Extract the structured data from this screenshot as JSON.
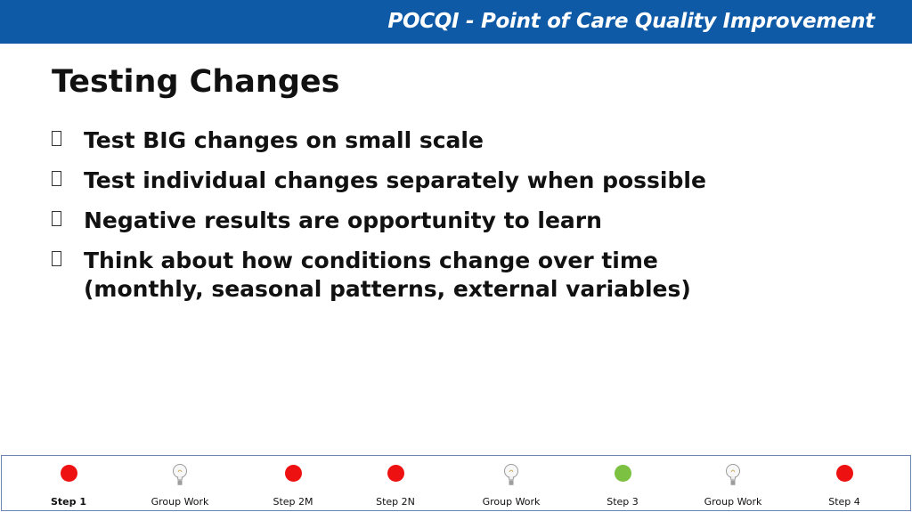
{
  "header": {
    "title": "POCQI - Point of Care Quality Improvement"
  },
  "slide": {
    "title": "Testing Changes",
    "bullets": [
      {
        "text": "Test BIG changes on small scale"
      },
      {
        "text": "Test individual changes separately when possible"
      },
      {
        "text": "Negative results are opportunity to learn"
      },
      {
        "text": "Think about how conditions change over time",
        "sub": "(monthly, seasonal patterns, external variables)"
      }
    ]
  },
  "footer_nav": {
    "items": [
      {
        "label": "Step 1",
        "icon": "red-dot",
        "color": "#ee1111",
        "active": true
      },
      {
        "label": "Group Work",
        "icon": "lightbulb-icon"
      },
      {
        "label": "Step 2M",
        "icon": "red-dot",
        "color": "#ee1111"
      },
      {
        "label": "Step 2N",
        "icon": "red-dot",
        "color": "#ee1111"
      },
      {
        "label": "Group Work",
        "icon": "lightbulb-icon"
      },
      {
        "label": "Step 3",
        "icon": "green-dot",
        "color": "#7cc142"
      },
      {
        "label": "Group Work",
        "icon": "lightbulb-icon"
      },
      {
        "label": "Step 4",
        "icon": "red-dot",
        "color": "#ee1111"
      }
    ]
  },
  "colors": {
    "header_bg": "#0e5aa7",
    "nav_border": "#6b86b3"
  }
}
